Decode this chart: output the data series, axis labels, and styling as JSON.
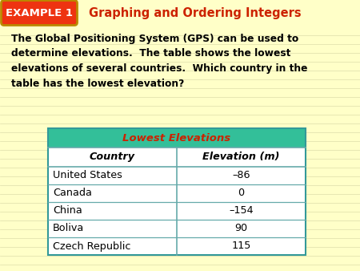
{
  "title": "Graphing and Ordering Integers",
  "example_label": "EXAMPLE 1",
  "body_text": "The Global Positioning System (GPS) can be used to\ndetermine elevations.  The table shows the lowest\nelevations of several countries.  Which country in the\ntable has the lowest elevation?",
  "table_title": "Lowest Elevations",
  "col_headers": [
    "Country",
    "Elevation (m)"
  ],
  "rows": [
    [
      "United States",
      "–86"
    ],
    [
      "Canada",
      "0"
    ],
    [
      "China",
      "–154"
    ],
    [
      "Boliva",
      "90"
    ],
    [
      "Czech Republic",
      "115"
    ]
  ],
  "bg_color": "#FFFFC8",
  "header_stripe_color": "#FFFFC8",
  "table_header_bg": "#33BF99",
  "table_title_color": "#CC2200",
  "title_color": "#CC2200",
  "example_bg": "#EE3311",
  "example_border_color": "#BB8800",
  "example_text_color": "#FFFFFF",
  "col_header_bg": "#FFFFFF",
  "row_bg": "#FFFFFF",
  "grid_color": "#66AAAA",
  "outer_border_color": "#339999"
}
